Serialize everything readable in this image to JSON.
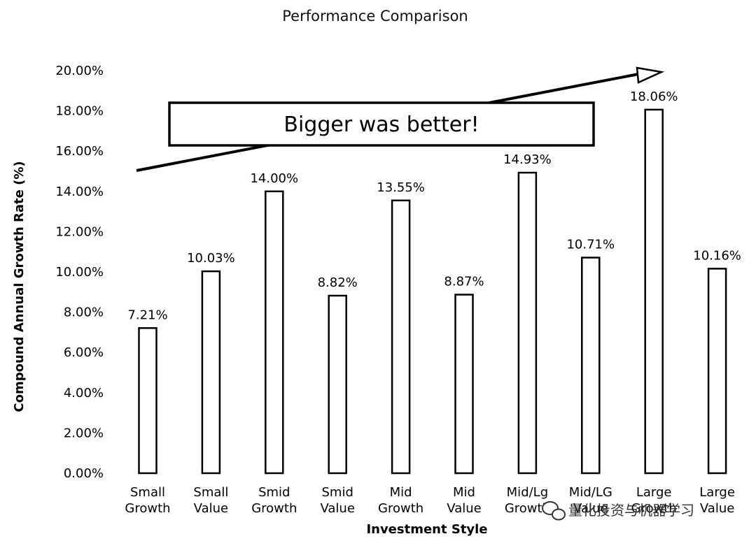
{
  "chart_data": {
    "type": "bar",
    "title": "Performance Comparison",
    "xlabel": "Investment Style",
    "ylabel": "Compound Annual Growth Rate (%)",
    "ylim": [
      0,
      20
    ],
    "yticks": [
      "0.00%",
      "2.00%",
      "4.00%",
      "6.00%",
      "8.00%",
      "10.00%",
      "12.00%",
      "14.00%",
      "16.00%",
      "18.00%",
      "20.00%"
    ],
    "categories": [
      [
        "Small",
        "Growth"
      ],
      [
        "Small",
        "Value"
      ],
      [
        "Smid",
        "Growth"
      ],
      [
        "Smid",
        "Value"
      ],
      [
        "Mid",
        "Growth"
      ],
      [
        "Mid",
        "Value"
      ],
      [
        "Mid/Lg",
        "Growth"
      ],
      [
        "Mid/LG",
        "Value"
      ],
      [
        "Large",
        "Growth"
      ],
      [
        "Large",
        "Value"
      ]
    ],
    "values": [
      7.21,
      10.03,
      14.0,
      8.82,
      13.55,
      8.87,
      14.93,
      10.71,
      18.06,
      10.16
    ],
    "value_labels": [
      "7.21%",
      "10.03%",
      "14.00%",
      "8.82%",
      "13.55%",
      "8.87%",
      "14.93%",
      "10.71%",
      "18.06%",
      "10.16%"
    ],
    "annotation": "Bigger was better!",
    "grid": false,
    "legend": "none"
  },
  "watermark": "量化投资与机器学习",
  "watermark_icon": "wechat-icon"
}
